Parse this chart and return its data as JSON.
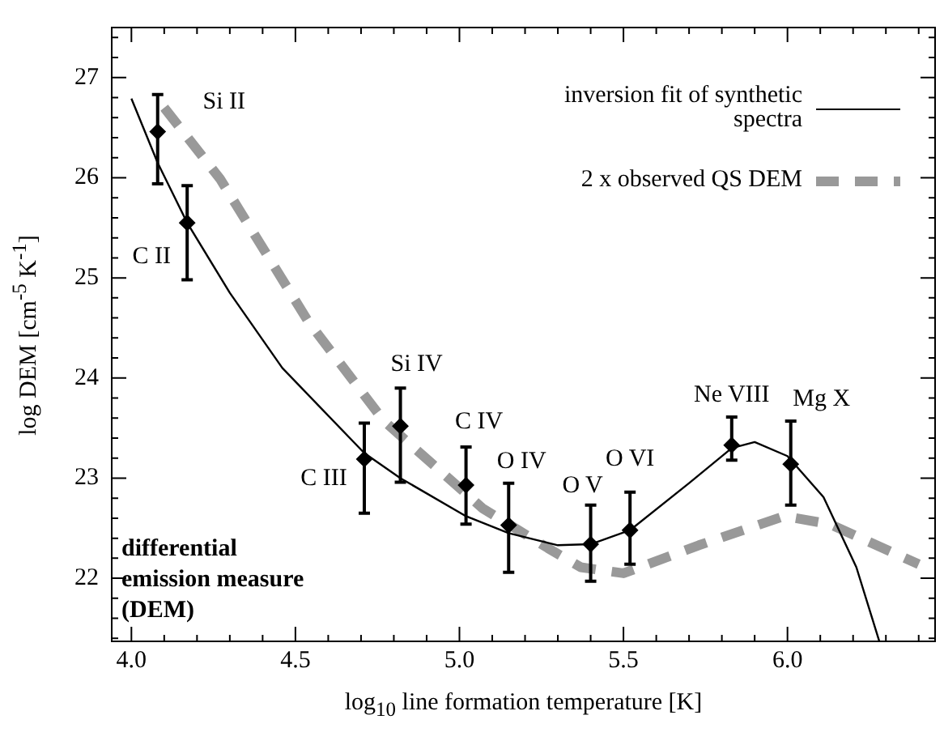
{
  "chart_data": {
    "type": "line",
    "xlabel": "log$_{10}$  line formation temperature  [K]",
    "ylabel": "log  DEM  [cm$^{-5}$ K$^{-1}$]",
    "xlim": [
      3.94,
      6.45
    ],
    "ylim": [
      21.37,
      27.5
    ],
    "xticks": [
      {
        "value": 4.0,
        "label": "4.0"
      },
      {
        "value": 4.1,
        "label": null
      },
      {
        "value": 4.2,
        "label": null
      },
      {
        "value": 4.3,
        "label": null
      },
      {
        "value": 4.4,
        "label": null
      },
      {
        "value": 4.5,
        "label": "4.5"
      },
      {
        "value": 4.6,
        "label": null
      },
      {
        "value": 4.7,
        "label": null
      },
      {
        "value": 4.8,
        "label": null
      },
      {
        "value": 4.9,
        "label": null
      },
      {
        "value": 5.0,
        "label": "5.0"
      },
      {
        "value": 5.1,
        "label": null
      },
      {
        "value": 5.2,
        "label": null
      },
      {
        "value": 5.3,
        "label": null
      },
      {
        "value": 5.4,
        "label": null
      },
      {
        "value": 5.5,
        "label": "5.5"
      },
      {
        "value": 5.6,
        "label": null
      },
      {
        "value": 5.7,
        "label": null
      },
      {
        "value": 5.8,
        "label": null
      },
      {
        "value": 5.9,
        "label": null
      },
      {
        "value": 6.0,
        "label": "6.0"
      },
      {
        "value": 6.1,
        "label": null
      },
      {
        "value": 6.2,
        "label": null
      },
      {
        "value": 6.3,
        "label": null
      },
      {
        "value": 6.4,
        "label": null
      }
    ],
    "yticks": [
      {
        "value": 21.4,
        "label": null
      },
      {
        "value": 21.6,
        "label": null
      },
      {
        "value": 21.8,
        "label": null
      },
      22,
      {
        "value": 22.2,
        "label": null
      },
      {
        "value": 22.4,
        "label": null
      },
      {
        "value": 22.6,
        "label": null
      },
      {
        "value": 22.8,
        "label": null
      },
      23,
      {
        "value": 23.2,
        "label": null
      },
      {
        "value": 23.4,
        "label": null
      },
      {
        "value": 23.6,
        "label": null
      },
      {
        "value": 23.8,
        "label": null
      },
      24,
      {
        "value": 24.2,
        "label": null
      },
      {
        "value": 24.4,
        "label": null
      },
      {
        "value": 24.6,
        "label": null
      },
      {
        "value": 24.8,
        "label": null
      },
      25,
      {
        "value": 25.2,
        "label": null
      },
      {
        "value": 25.4,
        "label": null
      },
      {
        "value": 25.6,
        "label": null
      },
      {
        "value": 25.8,
        "label": null
      },
      26,
      {
        "value": 26.2,
        "label": null
      },
      {
        "value": 26.4,
        "label": null
      },
      {
        "value": 26.6,
        "label": null
      },
      {
        "value": 26.8,
        "label": null
      },
      27,
      {
        "value": 27.2,
        "label": null
      },
      {
        "value": 27.4,
        "label": null
      }
    ],
    "grid": false,
    "legend": "top right",
    "series": [
      {
        "name": "inversion fit of synthetic spectra",
        "color": "#000000",
        "line_style": "solid",
        "marker": "none",
        "x": [
          4.0,
          4.08,
          4.17,
          4.3,
          4.46,
          4.71,
          4.82,
          5.02,
          5.15,
          5.3,
          5.4,
          5.52,
          5.7,
          5.83,
          5.9,
          6.0,
          6.11,
          6.21,
          6.28
        ],
        "values": [
          26.79,
          26.15,
          25.55,
          24.85,
          24.1,
          23.25,
          23.0,
          22.62,
          22.45,
          22.33,
          22.34,
          22.48,
          22.95,
          23.3,
          23.36,
          23.22,
          22.81,
          22.11,
          21.37
        ]
      },
      {
        "name": "2 x observed QS DEM",
        "color": "#999999",
        "line_style": "dashed",
        "marker": "none",
        "x": [
          4.1,
          4.27,
          4.54,
          4.77,
          5.07,
          5.27,
          5.37,
          5.5,
          5.73,
          5.99,
          6.13,
          6.4
        ],
        "values": [
          26.7,
          25.99,
          24.56,
          23.57,
          22.7,
          22.3,
          22.11,
          22.05,
          22.33,
          22.62,
          22.54,
          22.14
        ]
      },
      {
        "type": "scatter",
        "color": "#000000",
        "marker": "diamond",
        "x": [
          4.08,
          4.17,
          4.71,
          4.82,
          5.02,
          5.15,
          5.4,
          5.52,
          5.83,
          6.01
        ],
        "values": [
          26.46,
          25.55,
          23.19,
          23.52,
          22.93,
          22.53,
          22.34,
          22.48,
          23.33,
          23.14
        ],
        "errors": [
          [
            25.94,
            26.83
          ],
          [
            24.98,
            25.92
          ],
          [
            22.65,
            23.55
          ],
          [
            22.96,
            23.9
          ],
          [
            22.54,
            23.31
          ],
          [
            22.06,
            22.95
          ],
          [
            21.97,
            22.73
          ],
          [
            22.14,
            22.86
          ],
          [
            23.18,
            23.61
          ],
          [
            22.73,
            23.57
          ]
        ]
      }
    ],
    "annotations": [
      {
        "text": "Si II",
        "x": 4.08,
        "y": 26.46
      },
      {
        "text": "C II",
        "x": 4.17,
        "y": 25.55
      },
      {
        "text": "C III",
        "x": 4.71,
        "y": 23.19
      },
      {
        "text": "Si IV",
        "x": 4.82,
        "y": 23.52
      },
      {
        "text": "C IV",
        "x": 5.02,
        "y": 22.93
      },
      {
        "text": "O IV",
        "x": 5.15,
        "y": 22.53
      },
      {
        "text": "O V",
        "x": 5.4,
        "y": 22.34
      },
      {
        "text": "O VI",
        "x": 5.52,
        "y": 22.48
      },
      {
        "text": "Ne VIII",
        "x": 5.83,
        "y": 23.33
      },
      {
        "text": "Mg X",
        "x": 6.01,
        "y": 23.14
      },
      "differential emission measure (DEM)"
    ]
  }
}
